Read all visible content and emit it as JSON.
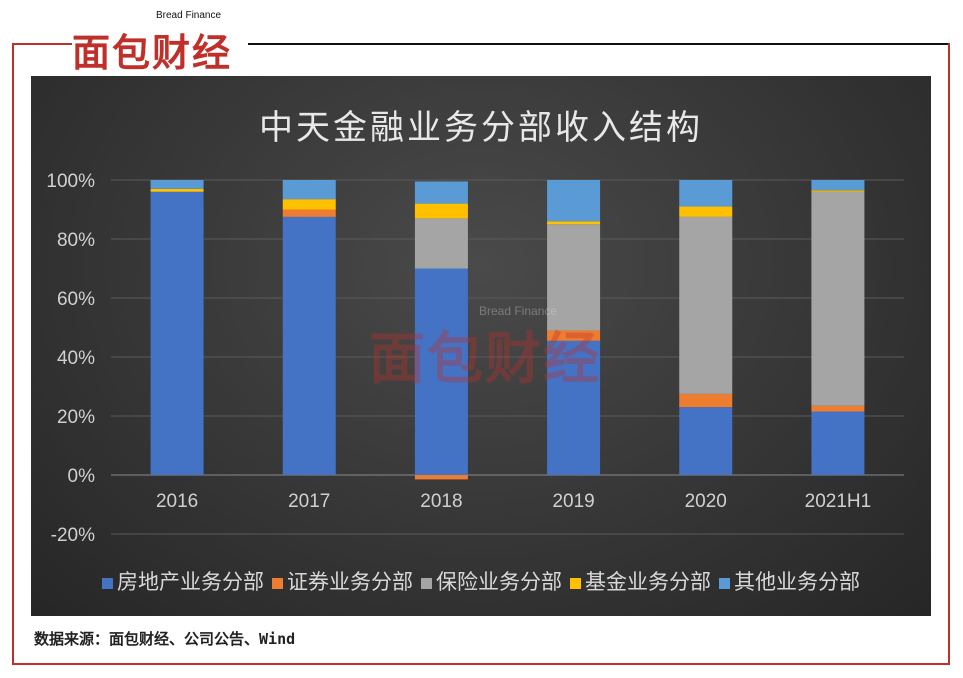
{
  "brand": {
    "name": "面包财经",
    "subtitle": "Bread Finance"
  },
  "chart_data": {
    "type": "bar",
    "stacked": true,
    "title": "中天金融业务分部收入结构",
    "categories": [
      "2016",
      "2017",
      "2018",
      "2019",
      "2020",
      "2021H1"
    ],
    "ylim": [
      -20,
      100
    ],
    "yticks": [
      "-20%",
      "0%",
      "20%",
      "40%",
      "60%",
      "80%",
      "100%"
    ],
    "ytick_values": [
      -20,
      0,
      20,
      40,
      60,
      80,
      100
    ],
    "grid": true,
    "legend_position": "bottom",
    "series": [
      {
        "name": "房地产业务分部",
        "color": "#4472c4",
        "values": [
          96,
          87.5,
          70,
          45.5,
          23,
          21.5
        ]
      },
      {
        "name": "证券业务分部",
        "color": "#ed7d31",
        "values": [
          0,
          2.5,
          -1.5,
          3.5,
          4.5,
          2
        ]
      },
      {
        "name": "保险业务分部",
        "color": "#a5a5a5",
        "values": [
          0,
          0,
          17,
          36,
          60,
          72.5
        ]
      },
      {
        "name": "基金业务分部",
        "color": "#ffc000",
        "values": [
          1,
          3.5,
          5,
          1,
          3.5,
          0.5
        ]
      },
      {
        "name": "其他业务分部",
        "color": "#5b9bd5",
        "values": [
          3,
          6.5,
          7.5,
          14,
          9,
          3.5
        ]
      }
    ]
  },
  "source": "数据来源：面包财经、公司公告、Wind"
}
